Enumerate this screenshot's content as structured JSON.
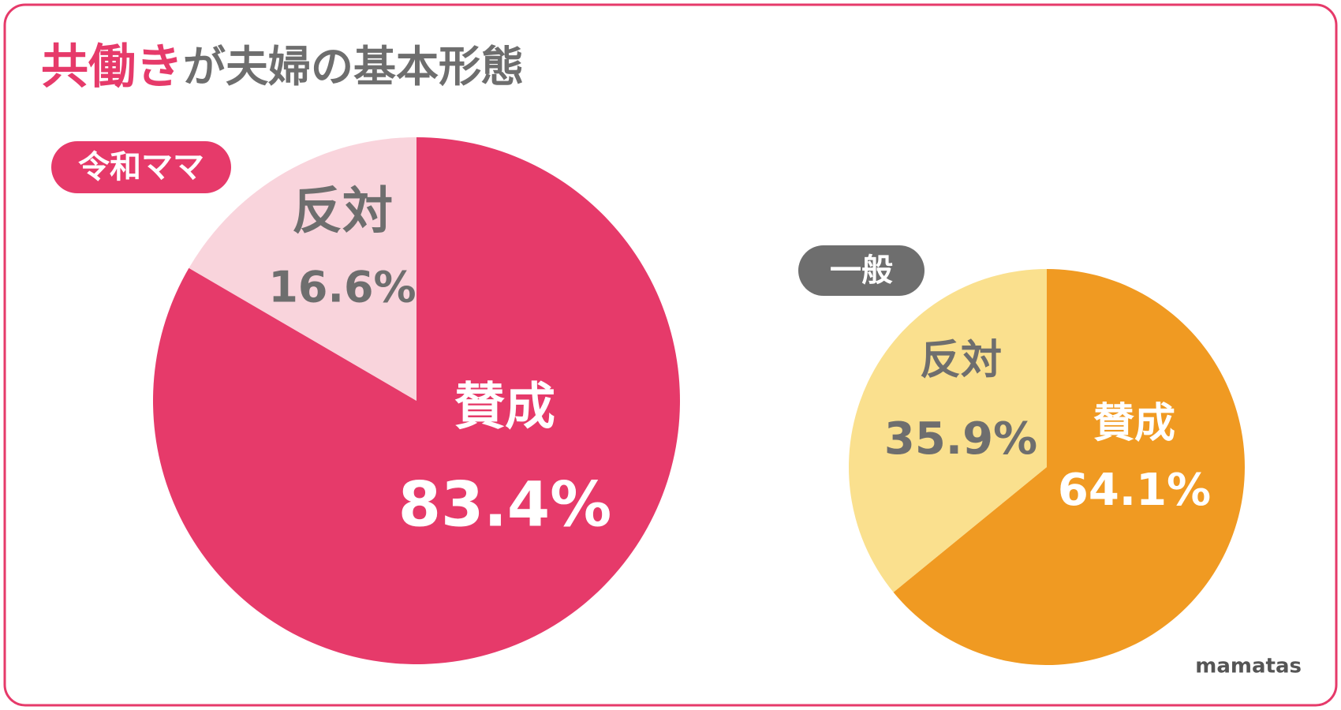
{
  "header": {
    "title_highlight": "共働き",
    "title_rest": "が夫婦の基本形態",
    "brand": "mamatas"
  },
  "chart_data": [
    {
      "type": "pie",
      "label": "令和ママ",
      "label_color": "#e63a6a",
      "categories": [
        "賛成",
        "反対"
      ],
      "values": [
        83.4,
        16.6
      ],
      "value_labels": [
        "83.4%",
        "16.6%"
      ],
      "colors": [
        "#e63a6a",
        "#f9d4dc"
      ]
    },
    {
      "type": "pie",
      "label": "一般",
      "label_color": "#6e6e6e",
      "categories": [
        "賛成",
        "反対"
      ],
      "values": [
        64.1,
        35.9
      ],
      "value_labels": [
        "64.1%",
        "35.9%"
      ],
      "colors": [
        "#f09a22",
        "#fae08e"
      ]
    }
  ]
}
